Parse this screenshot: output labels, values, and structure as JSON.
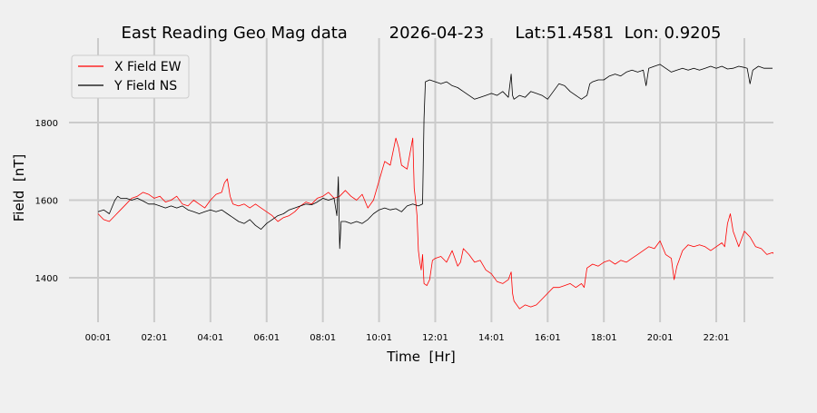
{
  "chart_data": {
    "type": "line",
    "title": "East Reading Geo Mag data        2026-04-23      Lat:51.4581  Lon: 0.9205",
    "xlabel": "Time  [Hr]",
    "ylabel": "Field  [nT]",
    "x_unit": "hours",
    "xlim": [
      0.8,
      24.2
    ],
    "ylim": [
      1280,
      1985
    ],
    "x_ticks": [
      {
        "value": 1,
        "label": "00:01"
      },
      {
        "value": 3,
        "label": "02:01"
      },
      {
        "value": 5,
        "label": "04:01"
      },
      {
        "value": 7,
        "label": "06:01"
      },
      {
        "value": 9,
        "label": "08:01"
      },
      {
        "value": 11,
        "label": "10:01"
      },
      {
        "value": 13,
        "label": "12:01"
      },
      {
        "value": 15,
        "label": "14:01"
      },
      {
        "value": 17,
        "label": "16:01"
      },
      {
        "value": 19,
        "label": "18:01"
      },
      {
        "value": 21,
        "label": "20:01"
      },
      {
        "value": 23,
        "label": "22:01"
      }
    ],
    "x_grid": [
      1,
      3,
      5,
      7,
      9,
      11,
      13,
      15,
      17,
      19,
      21,
      23,
      24
    ],
    "y_ticks": [
      1400,
      1600,
      1800
    ],
    "grid": true,
    "legend_position": "top-left",
    "series": [
      {
        "name": "X Field EW",
        "color": "#ff0000",
        "points": [
          [
            1.0,
            1565
          ],
          [
            1.2,
            1550
          ],
          [
            1.4,
            1545
          ],
          [
            1.6,
            1560
          ],
          [
            1.8,
            1575
          ],
          [
            2.0,
            1590
          ],
          [
            2.2,
            1605
          ],
          [
            2.4,
            1610
          ],
          [
            2.6,
            1620
          ],
          [
            2.8,
            1615
          ],
          [
            3.0,
            1605
          ],
          [
            3.2,
            1610
          ],
          [
            3.4,
            1595
          ],
          [
            3.6,
            1600
          ],
          [
            3.8,
            1610
          ],
          [
            4.0,
            1590
          ],
          [
            4.2,
            1585
          ],
          [
            4.4,
            1600
          ],
          [
            4.6,
            1590
          ],
          [
            4.8,
            1580
          ],
          [
            5.0,
            1600
          ],
          [
            5.2,
            1615
          ],
          [
            5.4,
            1620
          ],
          [
            5.5,
            1645
          ],
          [
            5.6,
            1655
          ],
          [
            5.7,
            1610
          ],
          [
            5.8,
            1590
          ],
          [
            6.0,
            1585
          ],
          [
            6.2,
            1590
          ],
          [
            6.4,
            1580
          ],
          [
            6.6,
            1590
          ],
          [
            6.8,
            1580
          ],
          [
            7.0,
            1570
          ],
          [
            7.2,
            1560
          ],
          [
            7.4,
            1545
          ],
          [
            7.6,
            1555
          ],
          [
            7.8,
            1560
          ],
          [
            8.0,
            1570
          ],
          [
            8.2,
            1585
          ],
          [
            8.4,
            1595
          ],
          [
            8.6,
            1590
          ],
          [
            8.8,
            1605
          ],
          [
            9.0,
            1610
          ],
          [
            9.2,
            1620
          ],
          [
            9.4,
            1605
          ],
          [
            9.6,
            1610
          ],
          [
            9.8,
            1625
          ],
          [
            10.0,
            1610
          ],
          [
            10.2,
            1600
          ],
          [
            10.4,
            1615
          ],
          [
            10.6,
            1580
          ],
          [
            10.8,
            1600
          ],
          [
            11.0,
            1650
          ],
          [
            11.2,
            1700
          ],
          [
            11.4,
            1690
          ],
          [
            11.6,
            1760
          ],
          [
            11.7,
            1735
          ],
          [
            11.8,
            1690
          ],
          [
            12.0,
            1680
          ],
          [
            12.1,
            1720
          ],
          [
            12.2,
            1760
          ],
          [
            12.25,
            1630
          ],
          [
            12.3,
            1600
          ],
          [
            12.35,
            1560
          ],
          [
            12.4,
            1470
          ],
          [
            12.45,
            1440
          ],
          [
            12.5,
            1420
          ],
          [
            12.55,
            1460
          ],
          [
            12.6,
            1385
          ],
          [
            12.7,
            1380
          ],
          [
            12.8,
            1395
          ],
          [
            12.9,
            1445
          ],
          [
            13.0,
            1450
          ],
          [
            13.2,
            1455
          ],
          [
            13.4,
            1440
          ],
          [
            13.6,
            1470
          ],
          [
            13.8,
            1430
          ],
          [
            13.9,
            1440
          ],
          [
            14.0,
            1475
          ],
          [
            14.2,
            1460
          ],
          [
            14.4,
            1440
          ],
          [
            14.6,
            1445
          ],
          [
            14.8,
            1420
          ],
          [
            15.0,
            1410
          ],
          [
            15.2,
            1390
          ],
          [
            15.4,
            1385
          ],
          [
            15.6,
            1395
          ],
          [
            15.7,
            1415
          ],
          [
            15.75,
            1360
          ],
          [
            15.8,
            1340
          ],
          [
            16.0,
            1320
          ],
          [
            16.2,
            1330
          ],
          [
            16.4,
            1325
          ],
          [
            16.6,
            1330
          ],
          [
            16.8,
            1345
          ],
          [
            17.0,
            1360
          ],
          [
            17.2,
            1375
          ],
          [
            17.4,
            1375
          ],
          [
            17.6,
            1380
          ],
          [
            17.8,
            1385
          ],
          [
            18.0,
            1375
          ],
          [
            18.2,
            1385
          ],
          [
            18.3,
            1375
          ],
          [
            18.4,
            1425
          ],
          [
            18.6,
            1435
          ],
          [
            18.8,
            1430
          ],
          [
            19.0,
            1440
          ],
          [
            19.2,
            1445
          ],
          [
            19.4,
            1435
          ],
          [
            19.6,
            1445
          ],
          [
            19.8,
            1440
          ],
          [
            20.0,
            1450
          ],
          [
            20.2,
            1460
          ],
          [
            20.4,
            1470
          ],
          [
            20.6,
            1480
          ],
          [
            20.8,
            1475
          ],
          [
            21.0,
            1495
          ],
          [
            21.2,
            1460
          ],
          [
            21.4,
            1450
          ],
          [
            21.5,
            1395
          ],
          [
            21.6,
            1430
          ],
          [
            21.8,
            1470
          ],
          [
            22.0,
            1485
          ],
          [
            22.2,
            1480
          ],
          [
            22.4,
            1485
          ],
          [
            22.6,
            1480
          ],
          [
            22.8,
            1470
          ],
          [
            23.0,
            1480
          ],
          [
            23.2,
            1490
          ],
          [
            23.3,
            1480
          ],
          [
            23.4,
            1540
          ],
          [
            23.5,
            1565
          ],
          [
            23.6,
            1520
          ],
          [
            23.8,
            1480
          ],
          [
            24.0,
            1520
          ],
          [
            24.2,
            1505
          ],
          [
            24.4,
            1480
          ],
          [
            24.6,
            1475
          ],
          [
            24.8,
            1460
          ],
          [
            25.0,
            1465
          ],
          [
            25.2,
            1450
          ]
        ]
      },
      {
        "name": "Y Field NS",
        "color": "#000000",
        "points": [
          [
            1.0,
            1570
          ],
          [
            1.2,
            1575
          ],
          [
            1.4,
            1565
          ],
          [
            1.6,
            1600
          ],
          [
            1.7,
            1610
          ],
          [
            1.8,
            1605
          ],
          [
            2.0,
            1605
          ],
          [
            2.2,
            1600
          ],
          [
            2.4,
            1605
          ],
          [
            2.6,
            1598
          ],
          [
            2.8,
            1590
          ],
          [
            3.0,
            1590
          ],
          [
            3.2,
            1585
          ],
          [
            3.4,
            1580
          ],
          [
            3.6,
            1585
          ],
          [
            3.8,
            1580
          ],
          [
            4.0,
            1585
          ],
          [
            4.2,
            1575
          ],
          [
            4.4,
            1570
          ],
          [
            4.6,
            1565
          ],
          [
            4.8,
            1570
          ],
          [
            5.0,
            1575
          ],
          [
            5.2,
            1570
          ],
          [
            5.4,
            1575
          ],
          [
            5.6,
            1565
          ],
          [
            5.8,
            1555
          ],
          [
            6.0,
            1545
          ],
          [
            6.2,
            1540
          ],
          [
            6.4,
            1550
          ],
          [
            6.6,
            1535
          ],
          [
            6.8,
            1525
          ],
          [
            7.0,
            1540
          ],
          [
            7.2,
            1550
          ],
          [
            7.4,
            1560
          ],
          [
            7.6,
            1565
          ],
          [
            7.8,
            1575
          ],
          [
            8.0,
            1580
          ],
          [
            8.2,
            1585
          ],
          [
            8.4,
            1590
          ],
          [
            8.6,
            1588
          ],
          [
            8.8,
            1595
          ],
          [
            9.0,
            1605
          ],
          [
            9.2,
            1600
          ],
          [
            9.4,
            1605
          ],
          [
            9.5,
            1560
          ],
          [
            9.55,
            1660
          ],
          [
            9.6,
            1475
          ],
          [
            9.65,
            1545
          ],
          [
            9.8,
            1545
          ],
          [
            10.0,
            1540
          ],
          [
            10.2,
            1545
          ],
          [
            10.4,
            1540
          ],
          [
            10.6,
            1550
          ],
          [
            10.8,
            1565
          ],
          [
            11.0,
            1575
          ],
          [
            11.2,
            1580
          ],
          [
            11.4,
            1575
          ],
          [
            11.6,
            1578
          ],
          [
            11.8,
            1570
          ],
          [
            12.0,
            1585
          ],
          [
            12.2,
            1590
          ],
          [
            12.4,
            1585
          ],
          [
            12.55,
            1590
          ],
          [
            12.6,
            1810
          ],
          [
            12.65,
            1905
          ],
          [
            12.8,
            1910
          ],
          [
            13.0,
            1905
          ],
          [
            13.2,
            1900
          ],
          [
            13.4,
            1905
          ],
          [
            13.6,
            1895
          ],
          [
            13.8,
            1890
          ],
          [
            14.0,
            1880
          ],
          [
            14.2,
            1870
          ],
          [
            14.4,
            1860
          ],
          [
            14.6,
            1865
          ],
          [
            14.8,
            1870
          ],
          [
            15.0,
            1875
          ],
          [
            15.2,
            1870
          ],
          [
            15.4,
            1880
          ],
          [
            15.6,
            1865
          ],
          [
            15.7,
            1925
          ],
          [
            15.75,
            1870
          ],
          [
            15.8,
            1860
          ],
          [
            16.0,
            1870
          ],
          [
            16.2,
            1865
          ],
          [
            16.4,
            1880
          ],
          [
            16.6,
            1875
          ],
          [
            16.8,
            1870
          ],
          [
            17.0,
            1860
          ],
          [
            17.2,
            1880
          ],
          [
            17.4,
            1900
          ],
          [
            17.6,
            1895
          ],
          [
            17.8,
            1880
          ],
          [
            18.0,
            1870
          ],
          [
            18.2,
            1860
          ],
          [
            18.4,
            1870
          ],
          [
            18.5,
            1900
          ],
          [
            18.6,
            1905
          ],
          [
            18.8,
            1910
          ],
          [
            19.0,
            1910
          ],
          [
            19.2,
            1920
          ],
          [
            19.4,
            1925
          ],
          [
            19.6,
            1920
          ],
          [
            19.8,
            1930
          ],
          [
            20.0,
            1935
          ],
          [
            20.2,
            1930
          ],
          [
            20.4,
            1935
          ],
          [
            20.5,
            1895
          ],
          [
            20.6,
            1940
          ],
          [
            20.8,
            1945
          ],
          [
            21.0,
            1950
          ],
          [
            21.2,
            1940
          ],
          [
            21.4,
            1930
          ],
          [
            21.6,
            1935
          ],
          [
            21.8,
            1940
          ],
          [
            22.0,
            1935
          ],
          [
            22.2,
            1940
          ],
          [
            22.4,
            1935
          ],
          [
            22.6,
            1940
          ],
          [
            22.8,
            1945
          ],
          [
            23.0,
            1940
          ],
          [
            23.2,
            1945
          ],
          [
            23.4,
            1938
          ],
          [
            23.6,
            1940
          ],
          [
            23.8,
            1945
          ],
          [
            24.0,
            1942
          ],
          [
            24.1,
            1940
          ],
          [
            24.2,
            1900
          ],
          [
            24.3,
            1935
          ],
          [
            24.5,
            1945
          ],
          [
            24.7,
            1940
          ],
          [
            25.0,
            1940
          ]
        ]
      }
    ]
  }
}
